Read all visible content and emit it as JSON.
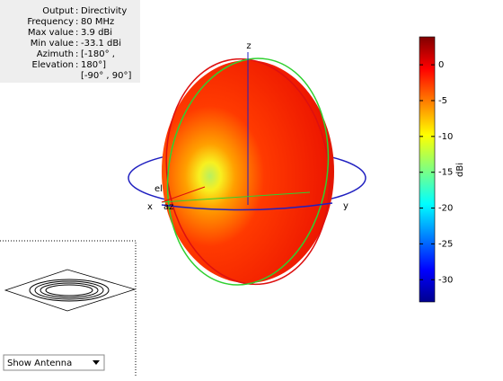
{
  "info": {
    "rows": [
      [
        "Output",
        "Directivity"
      ],
      [
        "Frequency",
        "80 MHz"
      ],
      [
        "Max value",
        "3.9 dBi"
      ],
      [
        "Min value",
        "-33.1 dBi"
      ],
      [
        "Azimuth",
        "[-180° ,"
      ],
      [
        "Elevation",
        "180°]"
      ]
    ],
    "extra": "[-90° , 90°]"
  },
  "chart_data": {
    "type": "pattern3d",
    "axis_labels": {
      "x": "x",
      "y": "y",
      "z": "z",
      "az": "az",
      "el": "el"
    },
    "colorbar": {
      "label": "dBi",
      "lim": [
        -33.1,
        3.9
      ],
      "ticks": [
        0,
        -5,
        -10,
        -15,
        -20,
        -25,
        -30
      ]
    }
  },
  "control": {
    "dropdown": "Show Antenna"
  }
}
